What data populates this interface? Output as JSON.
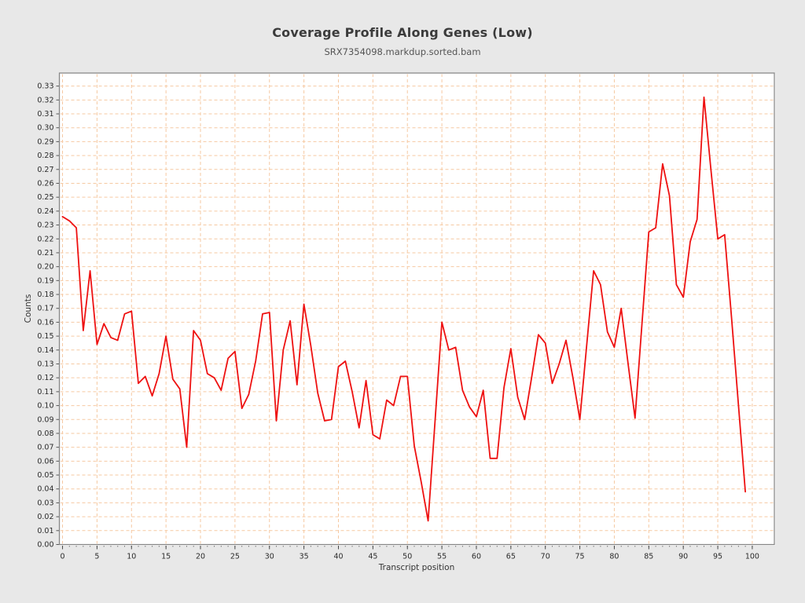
{
  "chart_data": {
    "type": "line",
    "title": "Coverage Profile Along Genes (Low)",
    "subtitle": "SRX7354098.markdup.sorted.bam",
    "xlabel": "Transcript position",
    "ylabel": "Counts",
    "xlim": [
      -0.46,
      103.2
    ],
    "ylim": [
      0,
      0.3394
    ],
    "x_tick_step": 5,
    "x_tick_max": 100,
    "x_minor_tick_step": 1,
    "y_tick_step": 0.01,
    "y_tick_max": 0.33,
    "grid": "dashed, every 5 on x, every 0.01 on y",
    "legend_position": "none",
    "line_color": "#ee1111",
    "grid_color": "#f6c9a2",
    "plot_bg_color": "#ffffff",
    "figure_bg_color": "#e8e8e8",
    "frame_color": "#858585",
    "x_start": 0,
    "x": [
      0,
      1,
      2,
      3,
      4,
      5,
      6,
      7,
      8,
      9,
      10,
      11,
      12,
      13,
      14,
      15,
      16,
      17,
      18,
      19,
      20,
      21,
      22,
      23,
      24,
      25,
      26,
      27,
      28,
      29,
      30,
      31,
      32,
      33,
      34,
      35,
      36,
      37,
      38,
      39,
      40,
      41,
      42,
      43,
      44,
      45,
      46,
      47,
      48,
      49,
      50,
      51,
      52,
      53,
      54,
      55,
      56,
      57,
      58,
      59,
      60,
      61,
      62,
      63,
      64,
      65,
      66,
      67,
      68,
      69,
      70,
      71,
      72,
      73,
      74,
      75,
      76,
      77,
      78,
      79,
      80,
      81,
      82,
      83,
      84,
      85,
      86,
      87,
      88,
      89,
      90,
      91,
      92,
      93,
      94,
      95,
      96,
      97,
      98,
      99
    ],
    "y": [
      0.236,
      0.233,
      0.228,
      0.154,
      0.197,
      0.144,
      0.159,
      0.149,
      0.147,
      0.166,
      0.168,
      0.116,
      0.121,
      0.107,
      0.123,
      0.15,
      0.119,
      0.112,
      0.07,
      0.154,
      0.147,
      0.123,
      0.12,
      0.111,
      0.134,
      0.139,
      0.098,
      0.108,
      0.132,
      0.166,
      0.167,
      0.089,
      0.14,
      0.161,
      0.115,
      0.173,
      0.143,
      0.109,
      0.089,
      0.09,
      0.128,
      0.132,
      0.11,
      0.084,
      0.118,
      0.079,
      0.076,
      0.104,
      0.1,
      0.121,
      0.121,
      0.071,
      0.045,
      0.017,
      0.088,
      0.16,
      0.14,
      0.142,
      0.111,
      0.099,
      0.092,
      0.111,
      0.062,
      0.062,
      0.113,
      0.141,
      0.106,
      0.09,
      0.12,
      0.151,
      0.145,
      0.116,
      0.13,
      0.147,
      0.12,
      0.09,
      0.144,
      0.197,
      0.187,
      0.153,
      0.142,
      0.17,
      0.13,
      0.091,
      0.158,
      0.225,
      0.228,
      0.274,
      0.251,
      0.187,
      0.178,
      0.218,
      0.234,
      0.322,
      0.27,
      0.22,
      0.223,
      0.163,
      0.1,
      0.038
    ]
  }
}
